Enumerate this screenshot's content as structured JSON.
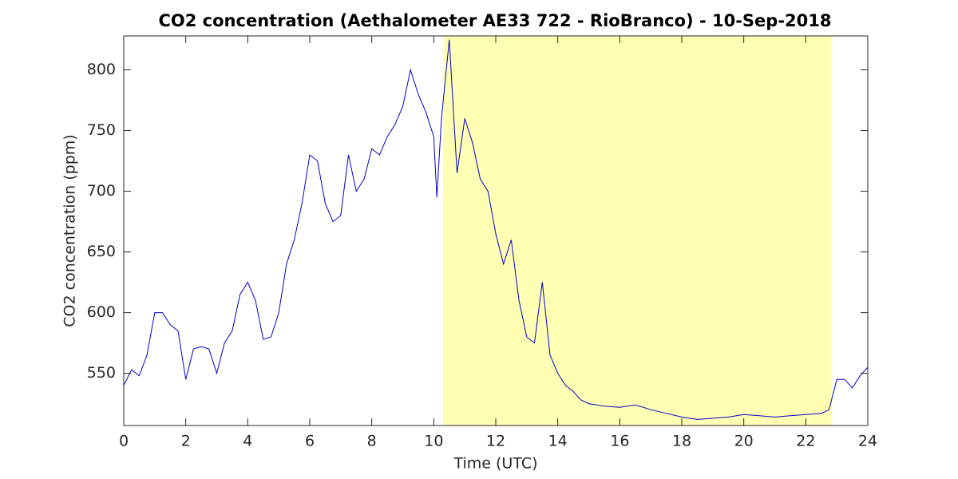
{
  "chart_data": {
    "type": "line",
    "title": "CO2 concentration (Aethalometer AE33 722 - RioBranco) - 10-Sep-2018",
    "x_label": "Time (UTC)",
    "y_label": "CO2 concentration (ppm)",
    "xlim": [
      0,
      24
    ],
    "ylim": [
      507,
      828
    ],
    "xticks": [
      0,
      2,
      4,
      6,
      8,
      10,
      12,
      14,
      16,
      18,
      20,
      22,
      24
    ],
    "yticks": [
      550,
      600,
      650,
      700,
      750,
      800
    ],
    "shaded_region": {
      "x": [
        10.3,
        22.85
      ],
      "color": "#ffffb3"
    },
    "x": [
      0,
      0.25,
      0.5,
      0.75,
      1,
      1.25,
      1.5,
      1.75,
      2,
      2.25,
      2.5,
      2.75,
      3,
      3.25,
      3.5,
      3.75,
      4,
      4.25,
      4.5,
      4.75,
      5,
      5.25,
      5.5,
      5.75,
      6,
      6.25,
      6.5,
      6.75,
      7,
      7.25,
      7.5,
      7.75,
      8,
      8.25,
      8.5,
      8.75,
      9,
      9.25,
      9.5,
      9.75,
      10,
      10.1,
      10.25,
      10.5,
      10.75,
      11,
      11.25,
      11.5,
      11.75,
      12,
      12.25,
      12.5,
      12.75,
      13,
      13.25,
      13.5,
      13.75,
      14,
      14.25,
      14.5,
      14.75,
      15,
      15.5,
      16,
      16.5,
      17,
      17.5,
      18,
      18.5,
      19,
      19.5,
      20,
      20.5,
      21,
      21.5,
      22,
      22.5,
      22.75,
      23,
      23.25,
      23.5,
      23.75,
      24
    ],
    "series": [
      {
        "name": "CO2",
        "color": "#0000cc",
        "values": [
          540,
          553,
          548,
          565,
          600,
          600,
          590,
          585,
          545,
          570,
          572,
          570,
          550,
          575,
          585,
          615,
          625,
          610,
          578,
          580,
          600,
          640,
          660,
          690,
          730,
          725,
          690,
          675,
          680,
          730,
          700,
          710,
          735,
          730,
          745,
          755,
          770,
          800,
          780,
          765,
          745,
          695,
          760,
          825,
          715,
          760,
          740,
          710,
          700,
          665,
          640,
          660,
          610,
          580,
          575,
          625,
          565,
          550,
          540,
          535,
          528,
          525,
          523,
          522,
          524,
          520,
          517,
          514,
          512,
          513,
          514,
          516,
          515,
          514,
          515,
          516,
          517,
          520,
          545,
          545,
          538,
          548,
          555
        ]
      }
    ]
  }
}
